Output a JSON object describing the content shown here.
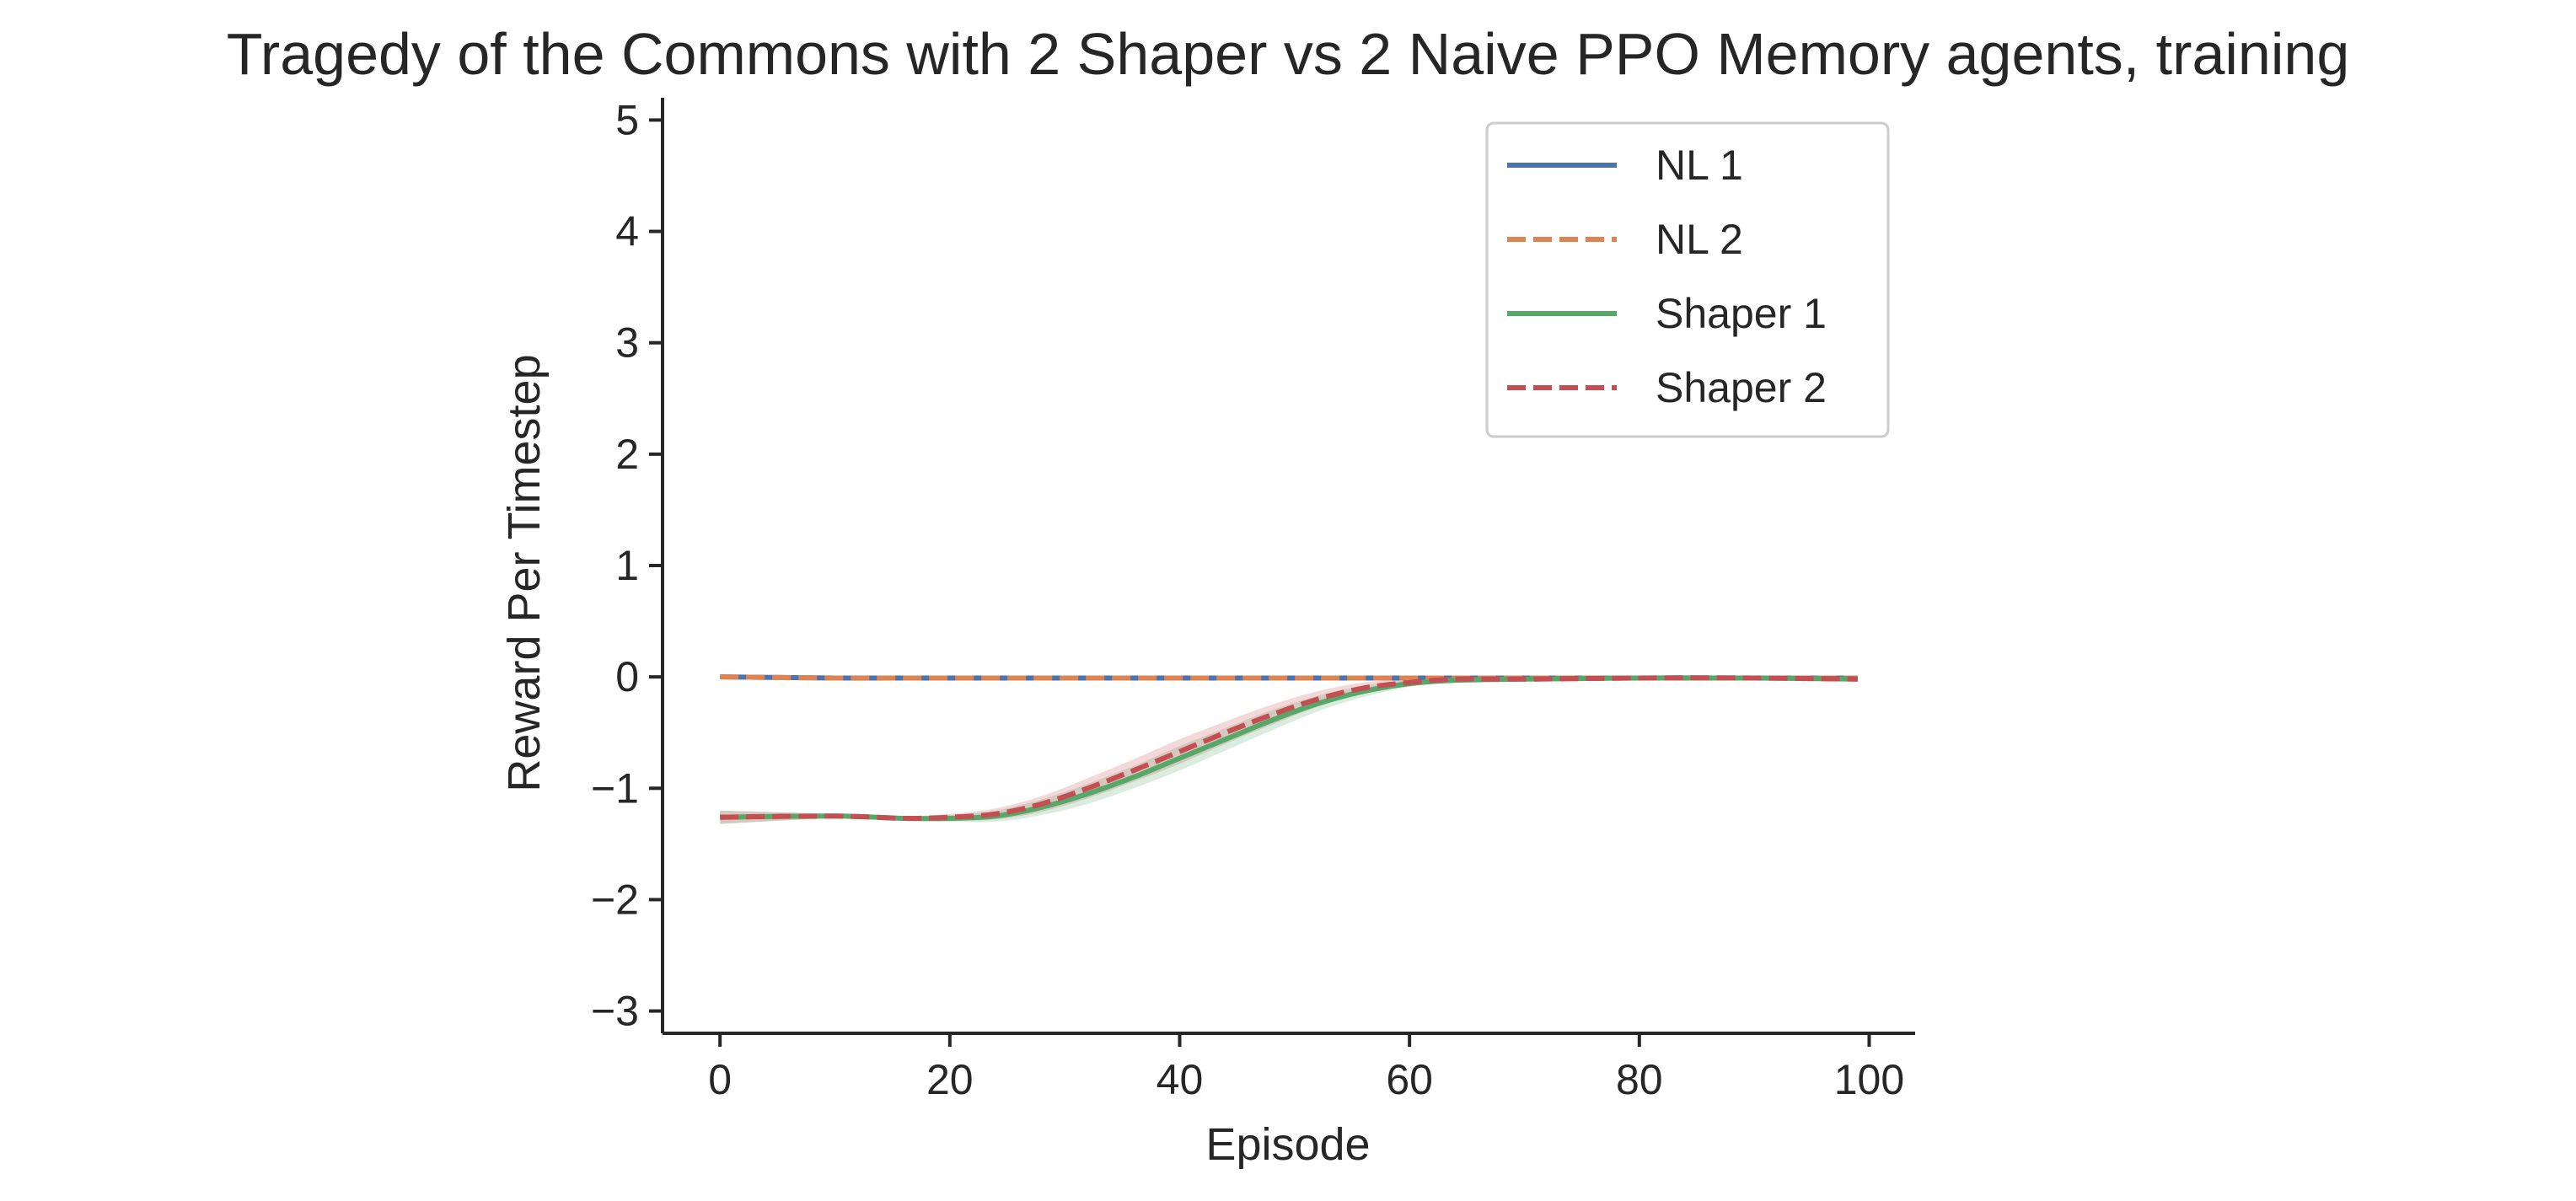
{
  "chart_data": {
    "type": "line",
    "title": "Tragedy of the Commons with 2 Shaper vs 2 Naive PPO Memory agents, training",
    "xlabel": "Episode",
    "ylabel": "Reward Per Timestep",
    "xlim": [
      -5,
      104
    ],
    "ylim": [
      -3.2,
      5.2
    ],
    "x_ticks": [
      0,
      20,
      40,
      60,
      80,
      100
    ],
    "x_tick_labels": [
      "0",
      "20",
      "40",
      "60",
      "80",
      "100"
    ],
    "y_ticks": [
      -3,
      -2,
      -1,
      0,
      1,
      2,
      3,
      4,
      5
    ],
    "y_tick_labels": [
      "−3",
      "−2",
      "−1",
      "0",
      "1",
      "2",
      "3",
      "4",
      "5"
    ],
    "grid": false,
    "legend": "top-right",
    "x": [
      0,
      10,
      16,
      20,
      24,
      28,
      32,
      36,
      40,
      44,
      48,
      52,
      56,
      60,
      64,
      70,
      80,
      90,
      99
    ],
    "series": [
      {
        "name": "NL 1",
        "color": "#4c72b0",
        "dash": "solid",
        "values": [
          0.0,
          -0.01,
          -0.01,
          -0.01,
          -0.01,
          -0.01,
          -0.01,
          -0.01,
          -0.01,
          -0.01,
          -0.01,
          -0.01,
          -0.01,
          -0.01,
          -0.01,
          -0.01,
          -0.01,
          -0.01,
          -0.01
        ]
      },
      {
        "name": "NL 2",
        "color": "#dd8452",
        "dash": "dashed",
        "values": [
          0.0,
          -0.01,
          -0.01,
          -0.01,
          -0.01,
          -0.01,
          -0.01,
          -0.01,
          -0.01,
          -0.01,
          -0.01,
          -0.01,
          -0.01,
          -0.01,
          -0.01,
          -0.01,
          -0.01,
          -0.01,
          -0.01
        ]
      },
      {
        "name": "Shaper 1",
        "color": "#55a868",
        "dash": "solid",
        "values": [
          -1.26,
          -1.25,
          -1.27,
          -1.27,
          -1.25,
          -1.17,
          -1.05,
          -0.9,
          -0.73,
          -0.56,
          -0.39,
          -0.24,
          -0.13,
          -0.06,
          -0.03,
          -0.02,
          -0.01,
          -0.01,
          -0.02
        ],
        "band": [
          0.06,
          0.02,
          0.02,
          0.03,
          0.05,
          0.07,
          0.09,
          0.1,
          0.11,
          0.1,
          0.09,
          0.07,
          0.05,
          0.03,
          0.02,
          0.01,
          0.01,
          0.01,
          0.01
        ]
      },
      {
        "name": "Shaper 2",
        "color": "#c44e52",
        "dash": "dashed",
        "values": [
          -1.26,
          -1.25,
          -1.27,
          -1.26,
          -1.23,
          -1.14,
          -1.0,
          -0.84,
          -0.67,
          -0.5,
          -0.34,
          -0.2,
          -0.1,
          -0.05,
          -0.02,
          -0.02,
          -0.01,
          -0.01,
          -0.02
        ],
        "band": [
          0.06,
          0.02,
          0.02,
          0.03,
          0.05,
          0.07,
          0.09,
          0.1,
          0.11,
          0.1,
          0.09,
          0.07,
          0.05,
          0.03,
          0.02,
          0.01,
          0.01,
          0.01,
          0.01
        ]
      }
    ]
  }
}
